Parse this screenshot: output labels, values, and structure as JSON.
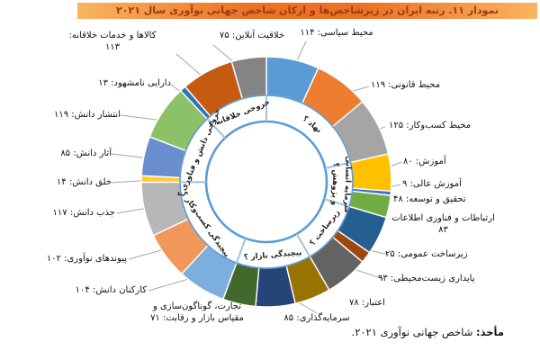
{
  "title": "نمودار ۱۱. رتبه ایران در زیرشاخص‌ها و ارکان شاخص جهانی نوآوری سال ۲۰۲۱",
  "source": {
    "prefix": "مأخذ:",
    "text": " شاخص جهانی نوآوری ۲۰۲۱."
  },
  "title_bar_colors": {
    "edge": "#FAB45F",
    "center": "#EC7123",
    "text": "#9C3A16"
  },
  "ring_accent_color": "#5B9BD5",
  "ring_divider_color": "#9DC3E6",
  "leader_line_color": "#A6A6A6",
  "chart_data": {
    "type": "pie",
    "subtype": "sunburst-donut",
    "title": "رتبه ایران در زیرشاخص‌ها و ارکان شاخص جهانی نوآوری سال ۲۰۲۱",
    "direction": "clockwise-from-top",
    "value_meaning": "rank",
    "total": 1672,
    "pillars": [
      {
        "label": "نهاد ؟",
        "sub_indicators": [
          {
            "label": "محیط سیاسی",
            "rank": 114,
            "rank_fa": "۱۱۴",
            "display": "محیط سیاسی: ۱۱۴",
            "color": "#5B9BD5"
          },
          {
            "label": "محیط قانونی",
            "rank": 119,
            "rank_fa": "۱۱۹",
            "display": "محیط قانونی: ۱۱۹",
            "color": "#ED7D31"
          },
          {
            "label": "محیط کسب‌وکار",
            "rank": 125,
            "rank_fa": "۱۲۵",
            "display": "محیط کسب‌وکار: ۱۲۵",
            "color": "#A5A5A5"
          }
        ]
      },
      {
        "label": "سرمایه انسانی و پژوهش ؟",
        "label_lines": [
          "سرمایه انسانی",
          "و پژوهش ؟"
        ],
        "sub_indicators": [
          {
            "label": "آموزش",
            "rank": 80,
            "rank_fa": "۸۰",
            "display": "آموزش: ۸۰",
            "color": "#FFC000"
          },
          {
            "label": "آموزش عالی",
            "rank": 9,
            "rank_fa": "۹",
            "display": "آموزش عالی: ۹",
            "color": "#4472C4"
          },
          {
            "label": "تحقیق و توسعه",
            "rank": 48,
            "rank_fa": "۴۸",
            "display": "تحقیق و توسعه: ۴۸",
            "color": "#70AD47"
          }
        ]
      },
      {
        "label": "زیرساخت ؟",
        "sub_indicators": [
          {
            "label": "ارتباطات و فناوری اطلاعات",
            "rank": 83,
            "rank_fa": "۸۳",
            "display": "ارتباطات و فناوری اطلاعات ۸۳",
            "display_lines": [
              "ارتباطات و فناوری اطلاعات",
              "۸۳"
            ],
            "color": "#255E91"
          },
          {
            "label": "زیرساخت عمومی",
            "rank": 25,
            "rank_fa": "۲۵",
            "display": "زیرساخت عمومی: ۲۵",
            "color": "#9E480E"
          },
          {
            "label": "پایداری زیست‌محیطی",
            "rank": 93,
            "rank_fa": "۹۳",
            "display": "پایداری زیست‌محیطی: ۹۳",
            "color": "#636363"
          }
        ]
      },
      {
        "label": "پیچیدگی بازار ؟",
        "sub_indicators": [
          {
            "label": "اعتبار",
            "rank": 78,
            "rank_fa": "۷۸",
            "display": "اعتبار: ۷۸",
            "color": "#997300"
          },
          {
            "label": "سرمایه‌گذاری",
            "rank": 85,
            "rank_fa": "۸۵",
            "display": "سرمایه‌گذاری: ۸۵",
            "color": "#264478"
          },
          {
            "label": "تجارت، گوناگون‌سازی و مقیاس بازار و رقابت",
            "rank": 71,
            "rank_fa": "۷۱",
            "display": "تجارت، گوناگون‌سازی و مقیاس بازار و رقابت: ۷۱",
            "display_lines": [
              "تجارت، گوناگون‌سازی و",
              "مقیاس بازار و رقابت: ۷۱"
            ],
            "color": "#43682B"
          }
        ]
      },
      {
        "label": "پیچیدگی کسب‌وکار ؟",
        "sub_indicators": [
          {
            "label": "کارکنان دانش",
            "rank": 104,
            "rank_fa": "۱۰۴",
            "display": "کارکنان دانش: ۱۰۴",
            "color": "#7CAFDD"
          },
          {
            "label": "پیوندهای نوآوری",
            "rank": 102,
            "rank_fa": "۱۰۲",
            "display": "پیوندهای نوآوری: ۱۰۲",
            "color": "#F1975A"
          },
          {
            "label": "جذب دانش",
            "rank": 117,
            "rank_fa": "۱۱۷",
            "display": "جذب دانش: ۱۱۷",
            "color": "#B7B7B7"
          }
        ]
      },
      {
        "label": "خروجی دانش و فناوری ؟",
        "sub_indicators": [
          {
            "label": "خلق دانش",
            "rank": 14,
            "rank_fa": "۱۴",
            "display": "خلق دانش: ۱۴",
            "color": "#FFCD33"
          },
          {
            "label": "آثار دانش",
            "rank": 85,
            "rank_fa": "۸۵",
            "display": "آثار دانش: ۸۵",
            "color": "#698ED0"
          },
          {
            "label": "انتشار دانش",
            "rank": 119,
            "rank_fa": "۱۱۹",
            "display": "انتشار دانش: ۱۱۹",
            "color": "#8CC168"
          }
        ]
      },
      {
        "label": "خروجی خلاقانه ؟",
        "sub_indicators": [
          {
            "label": "دارایی نامشهود",
            "rank": 13,
            "rank_fa": "۱۳",
            "display": "دارایی نامشهود: ۱۳",
            "color": "#2E75B6"
          },
          {
            "label": "کالاها و خدمات خلاقانه",
            "rank": 113,
            "rank_fa": "۱۱۳",
            "display": "کالاها و خدمات خلاقانه: ۱۱۳",
            "display_lines": [
              "کالاها و خدمات خلاقانه:",
              "۱۱۳"
            ],
            "color": "#C55A11"
          },
          {
            "label": "خلاقیت آنلاین",
            "rank": 75,
            "rank_fa": "۷۵",
            "display": "خلاقیت آنلاین: ۷۵",
            "color": "#848484"
          }
        ]
      }
    ]
  }
}
